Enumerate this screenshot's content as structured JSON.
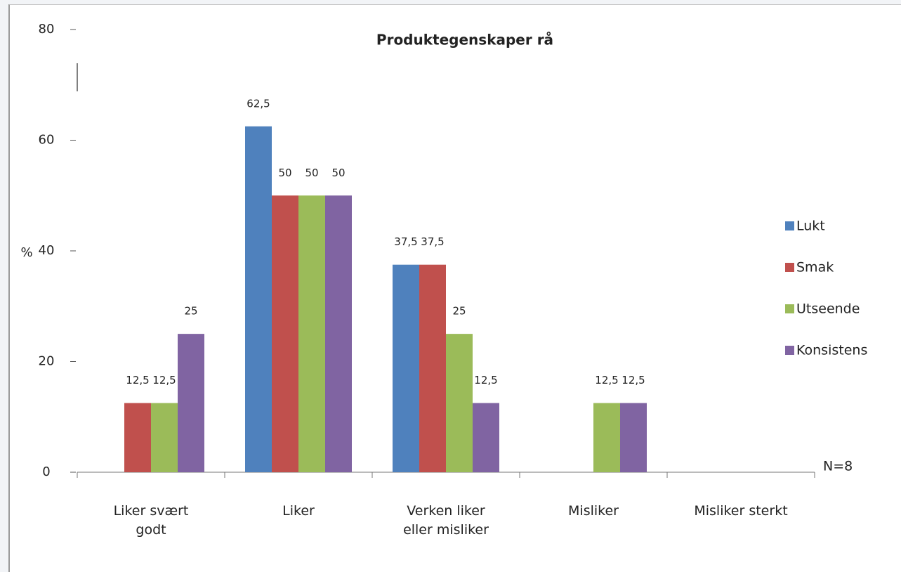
{
  "chart_data": {
    "type": "bar",
    "title": "Produktegenskaper rå",
    "y_label": "%",
    "annotation": "N=8",
    "categories": [
      "Liker svært godt",
      "Liker",
      "Verken liker eller misliker",
      "Misliker",
      "Misliker sterkt"
    ],
    "series": [
      {
        "name": "Lukt",
        "color": "#4f81bd",
        "values": [
          null,
          62.5,
          37.5,
          null,
          null
        ],
        "value_labels": [
          null,
          "62,5",
          "37,5",
          null,
          null
        ]
      },
      {
        "name": "Smak",
        "color": "#c0504d",
        "values": [
          12.5,
          50,
          37.5,
          null,
          null
        ],
        "value_labels": [
          "12,5",
          "50",
          "37,5",
          null,
          null
        ]
      },
      {
        "name": "Utseende",
        "color": "#9bbb59",
        "values": [
          12.5,
          50,
          25,
          12.5,
          null
        ],
        "value_labels": [
          "12,5",
          "50",
          "25",
          "12,5",
          null
        ]
      },
      {
        "name": "Konsistens",
        "color": "#8064a2",
        "values": [
          25,
          50,
          12.5,
          12.5,
          null
        ],
        "value_labels": [
          "25",
          "50",
          "12,5",
          "12,5",
          null
        ]
      }
    ],
    "ylim": [
      0,
      80
    ],
    "yticks": [
      0,
      20,
      40,
      60,
      80
    ],
    "legend": "right"
  }
}
